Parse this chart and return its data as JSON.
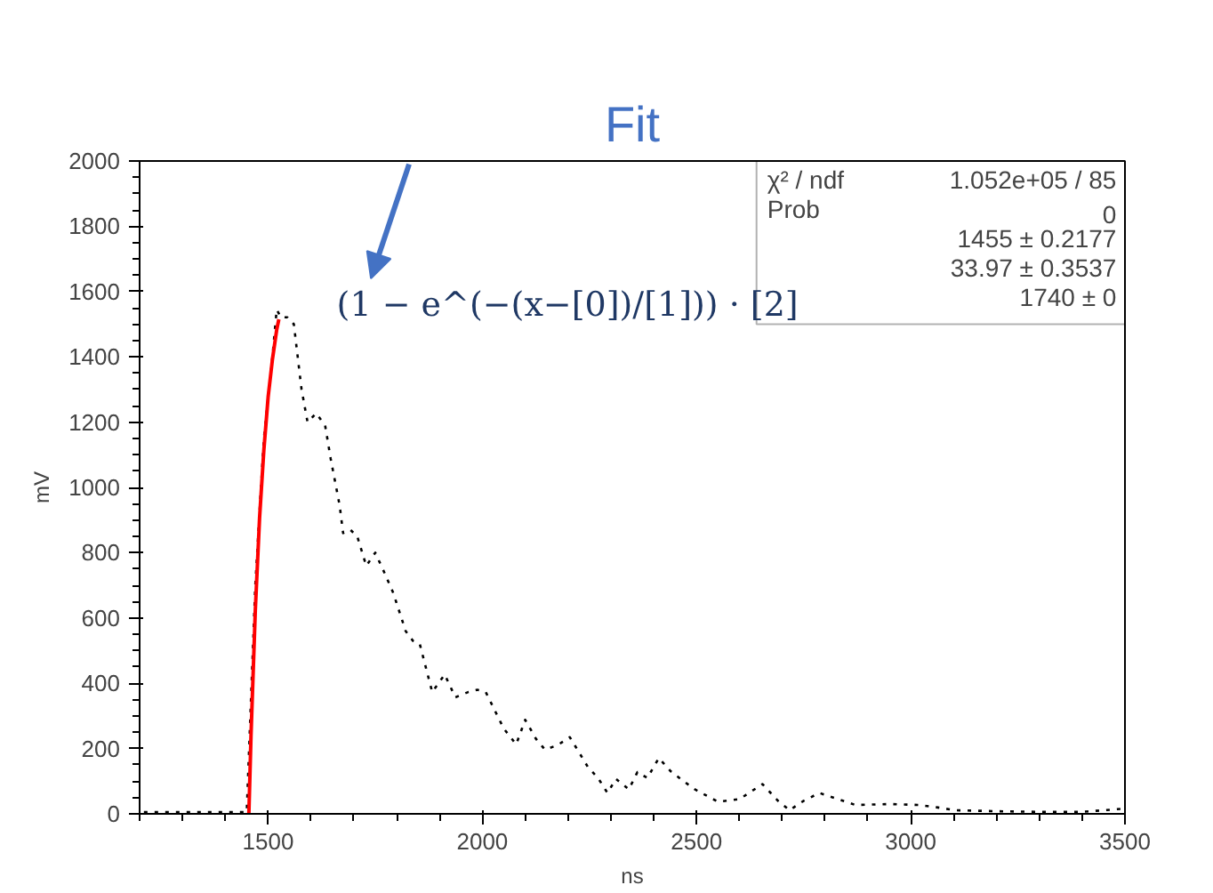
{
  "chart_data": {
    "type": "line",
    "title": "Fit",
    "xlabel": "ns",
    "ylabel": "mV",
    "xlim": [
      1200,
      3500
    ],
    "xticks": [
      1500,
      2000,
      2500,
      3000,
      3500
    ],
    "ylim": [
      0,
      2000
    ],
    "yticks": [
      0,
      200,
      400,
      600,
      800,
      1000,
      1200,
      1400,
      1600,
      1800,
      2000
    ],
    "grid": false,
    "marker": "none",
    "series": [
      {
        "color": "#000000",
        "line_style": "dotted",
        "x": [
          1210,
          1300,
          1400,
          1450,
          1470,
          1490,
          1510,
          1520,
          1530,
          1545,
          1560,
          1578,
          1592,
          1612,
          1633,
          1646,
          1667,
          1675,
          1692,
          1708,
          1729,
          1750,
          1771,
          1792,
          1821,
          1838,
          1854,
          1883,
          1912,
          1937,
          1967,
          1988,
          2008,
          2050,
          2079,
          2100,
          2125,
          2146,
          2175,
          2204,
          2225,
          2246,
          2270,
          2292,
          2312,
          2342,
          2362,
          2385,
          2412,
          2440,
          2470,
          2496,
          2550,
          2600,
          2654,
          2690,
          2717,
          2750,
          2787,
          2830,
          2871,
          2950,
          3021,
          3060,
          3104,
          3200,
          3300,
          3400,
          3490
        ],
        "values": [
          5,
          5,
          5,
          5,
          700,
          1150,
          1400,
          1545,
          1521,
          1521,
          1500,
          1300,
          1200,
          1227,
          1190,
          1088,
          944,
          860,
          870,
          850,
          760,
          800,
          740,
          677,
          560,
          530,
          520,
          373,
          427,
          357,
          373,
          380,
          373,
          261,
          213,
          288,
          230,
          197,
          210,
          235,
          190,
          144,
          110,
          64,
          107,
          75,
          128,
          110,
          171,
          130,
          100,
          75,
          37,
          45,
          91,
          40,
          11,
          40,
          64,
          45,
          27,
          30,
          27,
          20,
          11,
          8,
          6,
          6,
          15
        ]
      },
      {
        "color": "#ff0000",
        "line_style": "solid",
        "x": [
          1455,
          1460,
          1470,
          1480,
          1490,
          1500,
          1510,
          1520,
          1525
        ],
        "values": [
          0,
          240,
          622,
          907,
          1115,
          1277,
          1392,
          1483,
          1515
        ]
      }
    ],
    "annotations": [
      "χ² / ndf",
      "1.052e+05 / 85",
      "Prob",
      "0",
      "1455 ± 0.2177",
      "33.97 ± 0.3537",
      "1740 ± 0",
      "(1 − e^(−(x−[0])/[1])) · [2]"
    ]
  }
}
